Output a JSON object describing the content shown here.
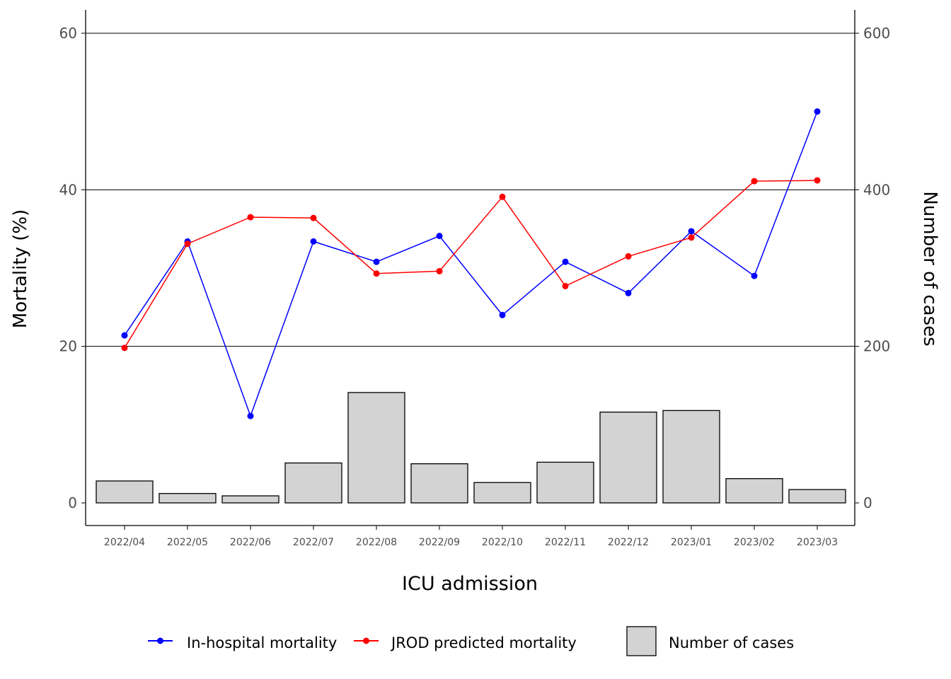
{
  "chart_data": {
    "type": "bar+line",
    "title": "",
    "xlabel": "ICU admission",
    "ylabel_left": "Mortality (%)",
    "ylabel_right": "Number of cases",
    "categories": [
      "2022/04",
      "2022/05",
      "2022/06",
      "2022/07",
      "2022/08",
      "2022/09",
      "2022/10",
      "2022/11",
      "2022/12",
      "2023/01",
      "2023/02",
      "2023/03"
    ],
    "ylim_left": [
      0,
      60
    ],
    "yticks_left": [
      0,
      20,
      40,
      60
    ],
    "ylim_right": [
      0,
      600
    ],
    "yticks_right": [
      0,
      200,
      400,
      600
    ],
    "grid": "horizontal major gridlines",
    "legend_position": "bottom",
    "bars": {
      "name": "Number of cases",
      "axis": "right",
      "color": "#d3d3d3",
      "stroke": "#000000",
      "values": [
        28,
        12,
        9,
        51,
        141,
        50,
        26,
        52,
        116,
        118,
        31,
        17
      ]
    },
    "series": [
      {
        "name": "In-hospital mortality",
        "axis": "left",
        "color": "#0000ff",
        "values": [
          21.4,
          33.4,
          11.1,
          33.4,
          30.8,
          34.1,
          24.0,
          30.8,
          26.8,
          34.7,
          29.0,
          50.0
        ]
      },
      {
        "name": "JROD predicted mortality",
        "axis": "left",
        "color": "#ff0000",
        "values": [
          19.8,
          33.1,
          36.5,
          36.4,
          29.3,
          29.6,
          39.1,
          27.7,
          31.5,
          33.9,
          41.1,
          41.2
        ]
      }
    ]
  }
}
